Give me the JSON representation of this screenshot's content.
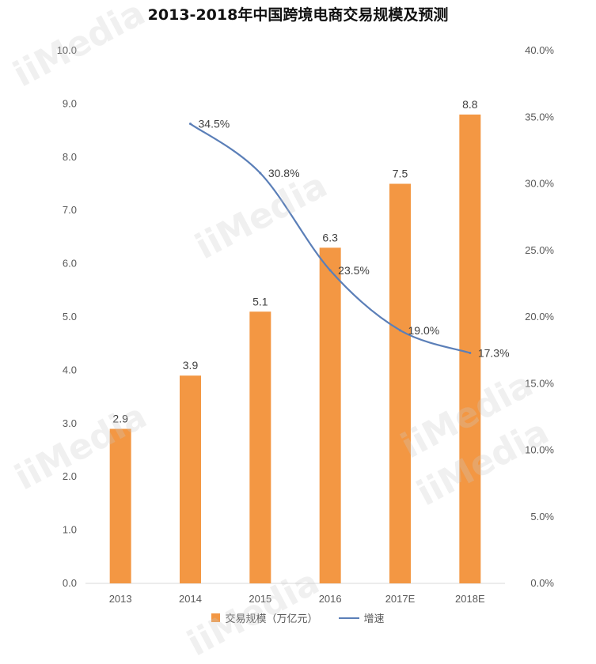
{
  "title": "2013-2018年中国跨境电商交易规模及预测",
  "watermark_text": "iiMedia",
  "colors": {
    "bar": "#F39743",
    "line": "#5B7FB8",
    "axis": "#D9D9D9"
  },
  "chart_data": {
    "type": "bar",
    "title": "2013-2018年中国跨境电商交易规模及预测",
    "categories": [
      "2013",
      "2014",
      "2015",
      "2016",
      "2017E",
      "2018E"
    ],
    "series": [
      {
        "name": "交易规模（万亿元）",
        "type": "bar",
        "axis": "left",
        "values": [
          2.9,
          3.9,
          5.1,
          6.3,
          7.5,
          8.8
        ],
        "labels": [
          "2.9",
          "3.9",
          "5.1",
          "6.3",
          "7.5",
          "8.8"
        ]
      },
      {
        "name": "增速",
        "type": "line",
        "axis": "right",
        "values": [
          null,
          34.5,
          30.8,
          23.5,
          19.0,
          17.3
        ],
        "labels": [
          "",
          "34.5%",
          "30.8%",
          "23.5%",
          "19.0%",
          "17.3%"
        ]
      }
    ],
    "y_left": {
      "min": 0,
      "max": 10,
      "step": 1,
      "ticks": [
        "0.0",
        "1.0",
        "2.0",
        "3.0",
        "4.0",
        "5.0",
        "6.0",
        "7.0",
        "8.0",
        "9.0",
        "10.0"
      ]
    },
    "y_right": {
      "min": 0,
      "max": 40,
      "step": 5,
      "ticks": [
        "0.0%",
        "5.0%",
        "10.0%",
        "15.0%",
        "20.0%",
        "25.0%",
        "30.0%",
        "35.0%",
        "40.0%"
      ]
    },
    "grid": false,
    "legend_position": "bottom-center"
  }
}
